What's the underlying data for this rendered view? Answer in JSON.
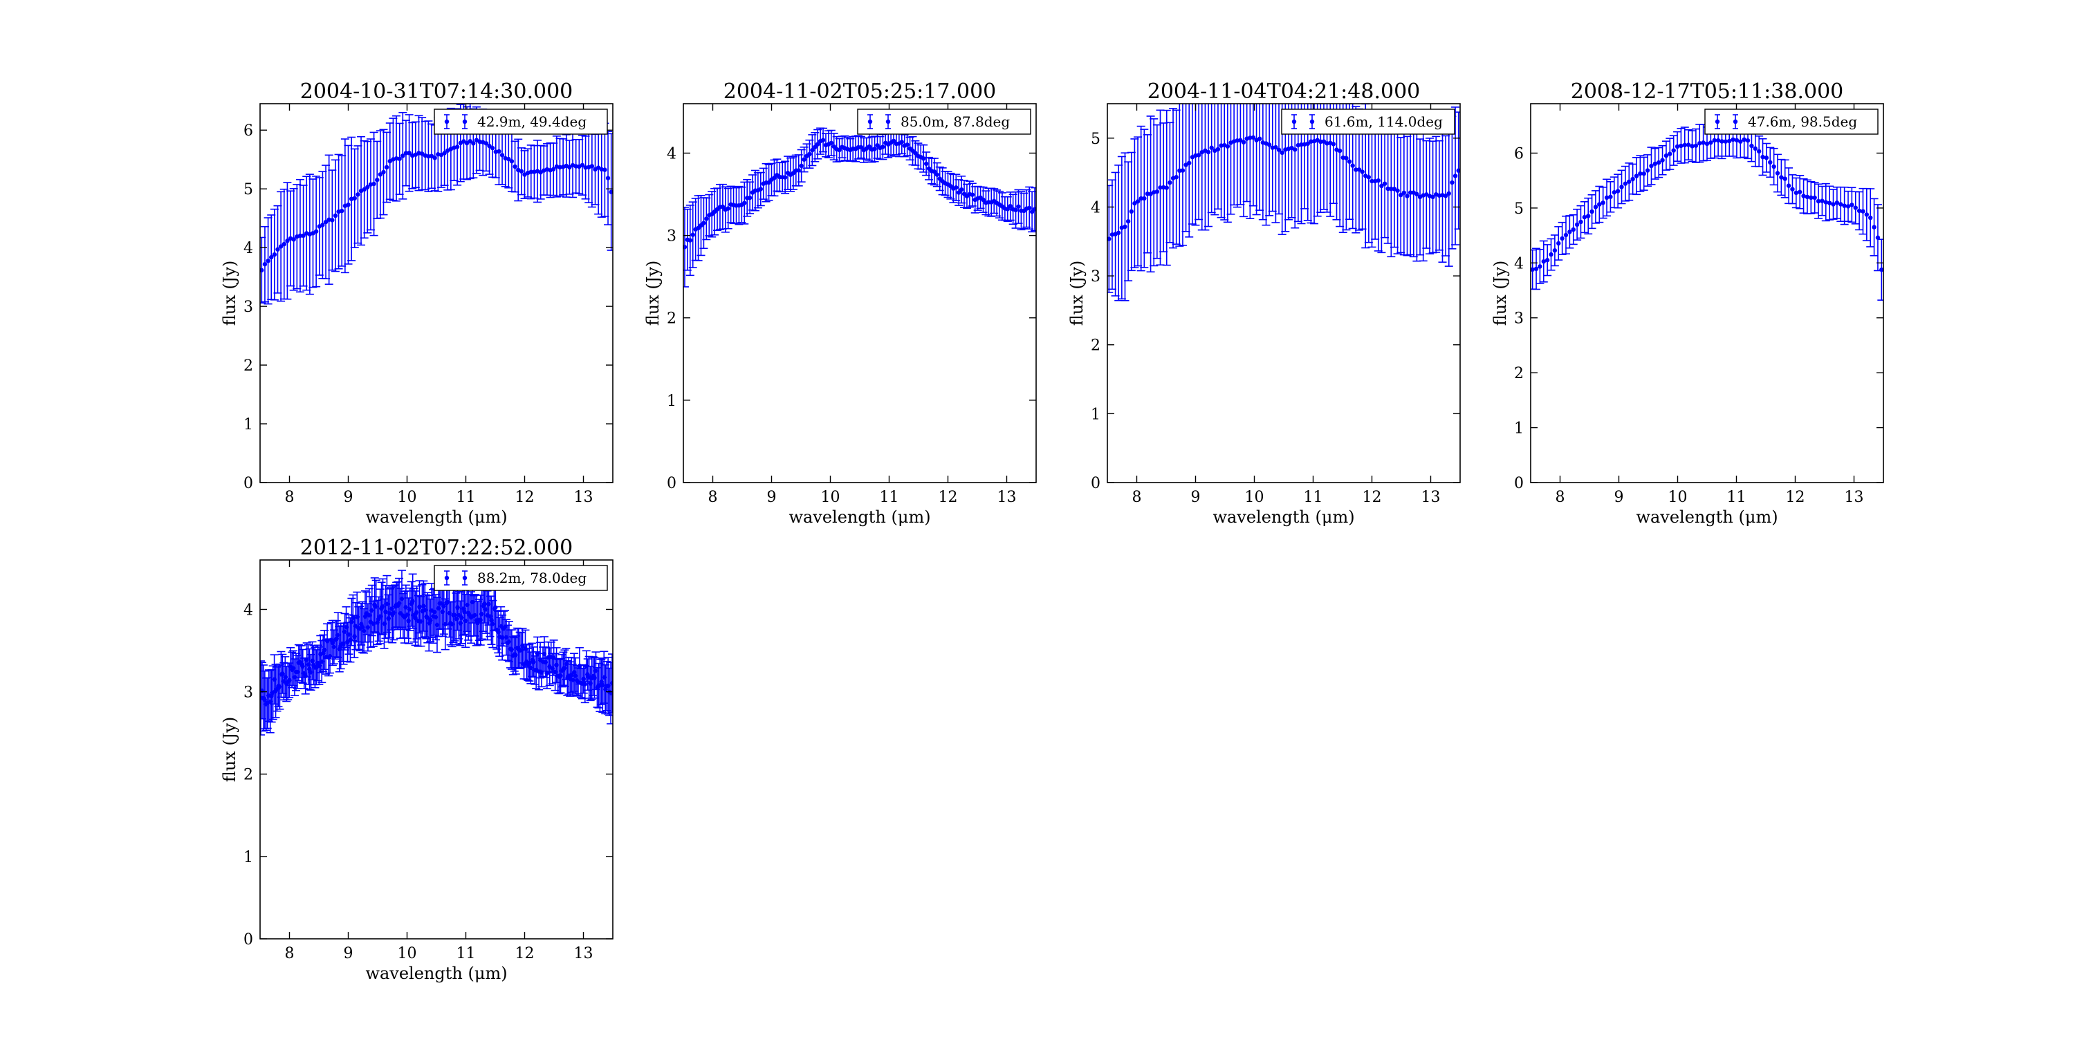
{
  "figure": {
    "background": "#ffffff",
    "series_color": "#0000ff"
  },
  "chart_data": [
    {
      "type": "scatter",
      "title": "2004-10-31T07:14:30.000",
      "xlabel": "wavelength (μm)",
      "ylabel": "flux (Jy)",
      "xlim": [
        7.5,
        13.5
      ],
      "ylim": [
        0,
        6.45
      ],
      "xticks": [
        8,
        9,
        10,
        11,
        12,
        13
      ],
      "yticks": [
        0,
        1,
        2,
        3,
        4,
        5,
        6
      ],
      "grid": false,
      "legend_position": "top-right",
      "series": [
        {
          "name": "42.9m, 49.4deg",
          "color": "#0000ff",
          "curve": [
            [
              7.5,
              3.6
            ],
            [
              7.7,
              3.85
            ],
            [
              8.0,
              4.15
            ],
            [
              8.4,
              4.25
            ],
            [
              8.8,
              4.55
            ],
            [
              9.2,
              4.95
            ],
            [
              9.5,
              5.15
            ],
            [
              9.7,
              5.45
            ],
            [
              10.0,
              5.6
            ],
            [
              10.5,
              5.55
            ],
            [
              11.0,
              5.8
            ],
            [
              11.3,
              5.8
            ],
            [
              11.6,
              5.6
            ],
            [
              12.0,
              5.25
            ],
            [
              12.5,
              5.35
            ],
            [
              13.0,
              5.4
            ],
            [
              13.4,
              5.3
            ],
            [
              13.5,
              4.8
            ]
          ],
          "error": [
            [
              7.5,
              0.6
            ],
            [
              8.0,
              0.9
            ],
            [
              9.0,
              1.0
            ],
            [
              9.6,
              0.7
            ],
            [
              10.0,
              0.65
            ],
            [
              11.0,
              0.6
            ],
            [
              11.5,
              0.5
            ],
            [
              12.0,
              0.45
            ],
            [
              13.0,
              0.5
            ],
            [
              13.5,
              0.9
            ]
          ],
          "n_points": 110
        }
      ]
    },
    {
      "type": "scatter",
      "title": "2004-11-02T05:25:17.000",
      "xlabel": "wavelength (μm)",
      "ylabel": "flux (Jy)",
      "xlim": [
        7.5,
        13.5
      ],
      "ylim": [
        0,
        4.6
      ],
      "xticks": [
        8,
        9,
        10,
        11,
        12,
        13
      ],
      "yticks": [
        0,
        1,
        2,
        3,
        4
      ],
      "grid": false,
      "legend_position": "top-right",
      "series": [
        {
          "name": "85.0m, 87.8deg",
          "color": "#0000ff",
          "curve": [
            [
              7.5,
              2.85
            ],
            [
              7.7,
              3.05
            ],
            [
              8.0,
              3.3
            ],
            [
              8.5,
              3.4
            ],
            [
              9.0,
              3.7
            ],
            [
              9.4,
              3.75
            ],
            [
              9.8,
              4.15
            ],
            [
              10.2,
              4.05
            ],
            [
              10.7,
              4.05
            ],
            [
              11.2,
              4.15
            ],
            [
              11.6,
              3.9
            ],
            [
              12.0,
              3.6
            ],
            [
              12.5,
              3.45
            ],
            [
              13.0,
              3.35
            ],
            [
              13.5,
              3.3
            ]
          ],
          "error": [
            [
              7.5,
              0.45
            ],
            [
              8.0,
              0.25
            ],
            [
              9.0,
              0.2
            ],
            [
              10.0,
              0.15
            ],
            [
              11.0,
              0.15
            ],
            [
              12.0,
              0.15
            ],
            [
              13.0,
              0.15
            ],
            [
              13.5,
              0.3
            ]
          ],
          "n_points": 130
        }
      ]
    },
    {
      "type": "scatter",
      "title": "2004-11-04T04:21:48.000",
      "xlabel": "wavelength (μm)",
      "ylabel": "flux (Jy)",
      "xlim": [
        7.5,
        13.5
      ],
      "ylim": [
        0,
        5.5
      ],
      "xticks": [
        8,
        9,
        10,
        11,
        12,
        13
      ],
      "yticks": [
        0,
        1,
        2,
        3,
        4,
        5
      ],
      "grid": false,
      "legend_position": "top-right",
      "series": [
        {
          "name": "61.6m, 114.0deg",
          "color": "#0000ff",
          "curve": [
            [
              7.5,
              3.55
            ],
            [
              7.8,
              3.7
            ],
            [
              8.0,
              4.1
            ],
            [
              8.5,
              4.3
            ],
            [
              9.0,
              4.75
            ],
            [
              9.5,
              4.9
            ],
            [
              10.0,
              5.0
            ],
            [
              10.5,
              4.8
            ],
            [
              11.0,
              4.95
            ],
            [
              11.3,
              4.95
            ],
            [
              11.6,
              4.65
            ],
            [
              12.0,
              4.4
            ],
            [
              12.5,
              4.2
            ],
            [
              13.0,
              4.15
            ],
            [
              13.3,
              4.2
            ],
            [
              13.5,
              4.6
            ]
          ],
          "error": [
            [
              7.5,
              0.85
            ],
            [
              8.0,
              1.0
            ],
            [
              9.0,
              1.0
            ],
            [
              10.0,
              1.05
            ],
            [
              11.0,
              1.05
            ],
            [
              12.0,
              0.9
            ],
            [
              13.0,
              0.85
            ],
            [
              13.5,
              1.0
            ]
          ],
          "n_points": 110
        }
      ]
    },
    {
      "type": "scatter",
      "title": "2008-12-17T05:11:38.000",
      "xlabel": "wavelength (μm)",
      "ylabel": "flux (Jy)",
      "xlim": [
        7.5,
        13.5
      ],
      "ylim": [
        0,
        6.9
      ],
      "xticks": [
        8,
        9,
        10,
        11,
        12,
        13
      ],
      "yticks": [
        0,
        1,
        2,
        3,
        4,
        5,
        6
      ],
      "grid": false,
      "legend_position": "top-right",
      "series": [
        {
          "name": "47.6m, 98.5deg",
          "color": "#0000ff",
          "curve": [
            [
              7.5,
              3.85
            ],
            [
              7.8,
              4.05
            ],
            [
              8.0,
              4.4
            ],
            [
              8.5,
              4.9
            ],
            [
              9.0,
              5.35
            ],
            [
              9.5,
              5.7
            ],
            [
              10.0,
              6.1
            ],
            [
              10.5,
              6.2
            ],
            [
              11.0,
              6.25
            ],
            [
              11.2,
              6.2
            ],
            [
              11.5,
              5.9
            ],
            [
              12.0,
              5.3
            ],
            [
              12.5,
              5.1
            ],
            [
              13.0,
              5.05
            ],
            [
              13.3,
              4.8
            ],
            [
              13.45,
              4.3
            ],
            [
              13.5,
              3.2
            ]
          ],
          "error": [
            [
              7.5,
              0.35
            ],
            [
              8.0,
              0.3
            ],
            [
              9.0,
              0.3
            ],
            [
              10.0,
              0.3
            ],
            [
              11.0,
              0.3
            ],
            [
              12.0,
              0.3
            ],
            [
              13.0,
              0.3
            ],
            [
              13.5,
              0.6
            ]
          ],
          "n_points": 95
        }
      ]
    },
    {
      "type": "scatter",
      "title": "2012-11-02T07:22:52.000",
      "xlabel": "wavelength (μm)",
      "ylabel": "flux (Jy)",
      "xlim": [
        7.5,
        13.5
      ],
      "ylim": [
        0,
        4.6
      ],
      "xticks": [
        8,
        9,
        10,
        11,
        12,
        13
      ],
      "yticks": [
        0,
        1,
        2,
        3,
        4
      ],
      "grid": false,
      "legend_position": "top-right",
      "series": [
        {
          "name": "88.2m, 78.0deg",
          "color": "#0000ff",
          "curve": [
            [
              7.5,
              2.9
            ],
            [
              7.8,
              3.05
            ],
            [
              8.0,
              3.2
            ],
            [
              8.5,
              3.4
            ],
            [
              9.0,
              3.75
            ],
            [
              9.5,
              3.95
            ],
            [
              10.0,
              4.0
            ],
            [
              10.5,
              3.95
            ],
            [
              11.0,
              3.95
            ],
            [
              11.4,
              4.0
            ],
            [
              11.8,
              3.55
            ],
            [
              12.0,
              3.45
            ],
            [
              12.5,
              3.3
            ],
            [
              13.0,
              3.2
            ],
            [
              13.5,
              3.1
            ]
          ],
          "error": [
            [
              7.5,
              0.4
            ],
            [
              8.0,
              0.2
            ],
            [
              9.0,
              0.25
            ],
            [
              9.5,
              0.3
            ],
            [
              10.0,
              0.3
            ],
            [
              11.0,
              0.3
            ],
            [
              12.0,
              0.2
            ],
            [
              13.0,
              0.2
            ],
            [
              13.5,
              0.35
            ]
          ],
          "n_points": 260
        }
      ]
    }
  ]
}
